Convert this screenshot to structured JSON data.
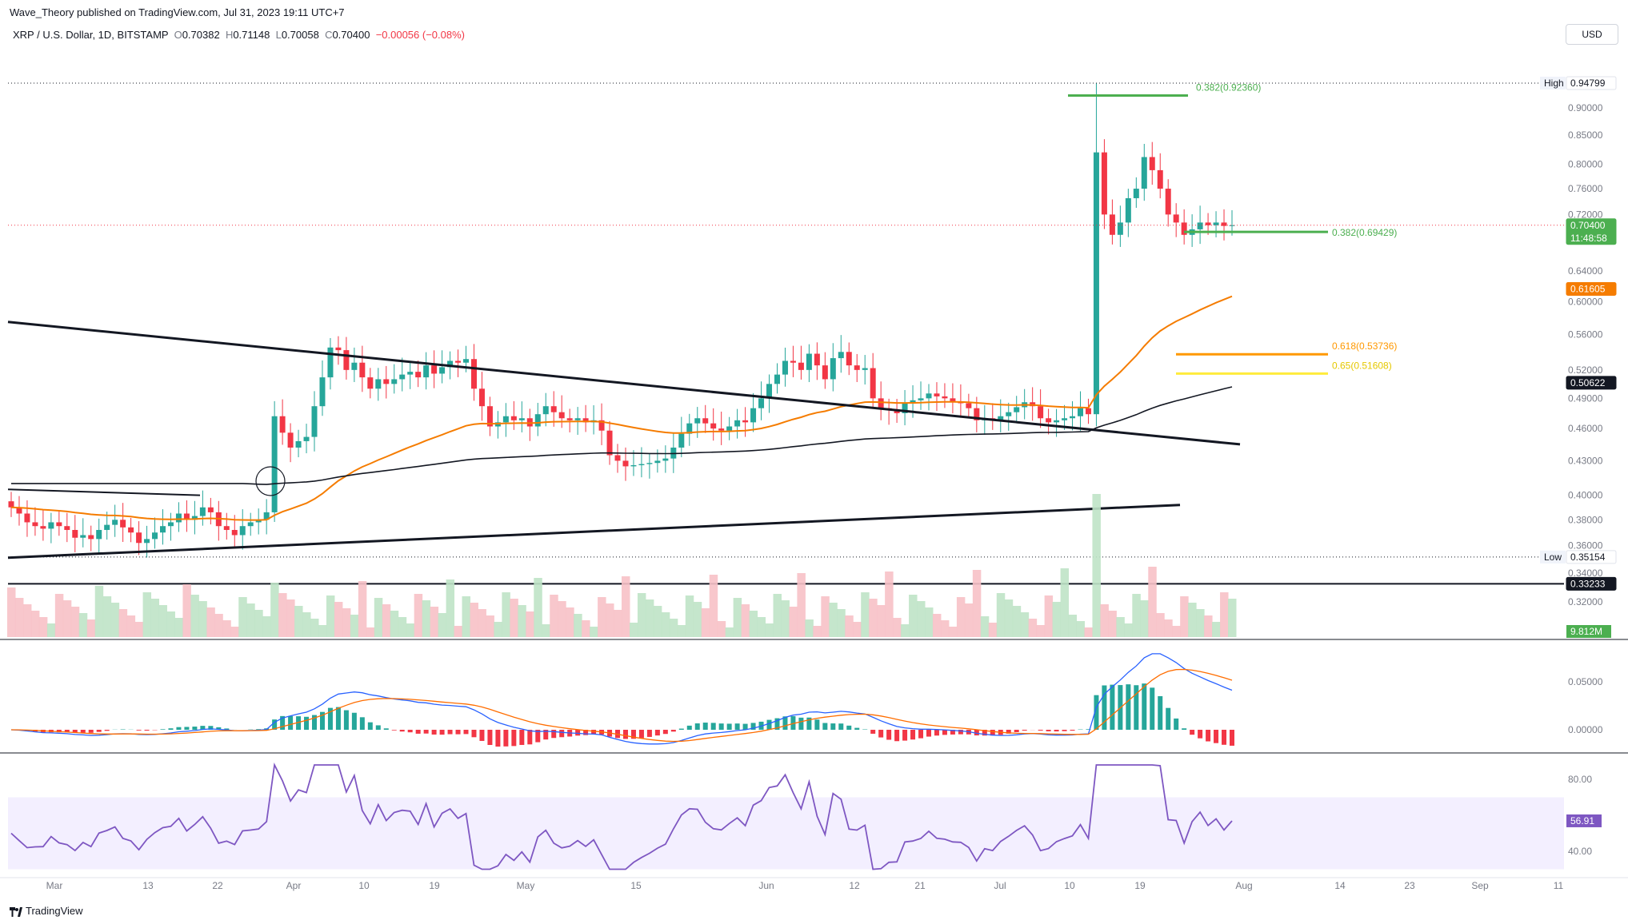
{
  "header": {
    "publisher": "Wave_Theory published on TradingView.com, Jul 31, 2023 19:11 UTC+7",
    "symbol": "XRP / U.S. Dollar, 1D, BITSTAMP",
    "open_label": "O",
    "open": "0.70382",
    "high_label": "H",
    "high": "0.71148",
    "low_label": "L",
    "low": "0.70058",
    "close_label": "C",
    "close": "0.70400",
    "change": "−0.00056 (−0.08%)",
    "currency_button": "USD"
  },
  "footer": {
    "brand": "TradingView"
  },
  "colors": {
    "up": "#26a69a",
    "down": "#f23645",
    "ema50": "#f57c00",
    "ema200": "#131722",
    "fib_green": "#4caf50",
    "fib_orange": "#ff9800",
    "fib_yellow": "#ffeb3b",
    "macd": "#2962ff",
    "signal": "#ff6d00",
    "rsi": "#7e57c2",
    "rsi_band": "#f3efff"
  },
  "chart_data": {
    "type": "line",
    "x_ticks": [
      "Mar",
      "13",
      "22",
      "Apr",
      "10",
      "19",
      "May",
      "15",
      "Jun",
      "12",
      "21",
      "Jul",
      "10",
      "19",
      "Aug",
      "14",
      "23",
      "Sep",
      "11"
    ],
    "price_axis": {
      "ticks": [
        "0.90000",
        "0.85000",
        "0.80000",
        "0.76000",
        "0.72000",
        "0.64000",
        "0.60000",
        "0.56000",
        "0.52000",
        "0.49000",
        "0.46000",
        "0.43000",
        "0.40000",
        "0.38000",
        "0.36000",
        "0.34000",
        "0.32000"
      ],
      "tick_values": [
        0.9,
        0.85,
        0.8,
        0.76,
        0.72,
        0.64,
        0.6,
        0.56,
        0.52,
        0.49,
        0.46,
        0.43,
        0.4,
        0.38,
        0.36,
        0.34,
        0.32
      ],
      "scale": "log"
    },
    "price_labels": [
      {
        "prefix": "High",
        "text": "0.94799",
        "value": 0.94799,
        "style": "high"
      },
      {
        "prefix": "",
        "text": "0.70400",
        "value": 0.704,
        "style": "last",
        "sub": "11:48:58"
      },
      {
        "prefix": "",
        "text": "0.61605",
        "value": 0.61605,
        "style": "ema50"
      },
      {
        "prefix": "",
        "text": "0.50622",
        "value": 0.50622,
        "style": "ema200"
      },
      {
        "prefix": "Low",
        "text": "0.35154",
        "value": 0.35154,
        "style": "low"
      },
      {
        "prefix": "",
        "text": "0.33233",
        "value": 0.33233,
        "style": "hline"
      }
    ],
    "fib_levels": [
      {
        "text": "0.382(0.92360)",
        "value": 0.9236,
        "color": "#4caf50"
      },
      {
        "text": "0.382(0.69429)",
        "value": 0.69429,
        "color": "#4caf50"
      },
      {
        "text": "0.618(0.53736)",
        "value": 0.53736,
        "color": "#ff9800"
      },
      {
        "text": "0.65(0.51608)",
        "value": 0.51608,
        "color": "#ffeb3b"
      }
    ],
    "candles_close": [
      0.39,
      0.385,
      0.378,
      0.375,
      0.373,
      0.378,
      0.375,
      0.372,
      0.366,
      0.368,
      0.365,
      0.372,
      0.376,
      0.38,
      0.374,
      0.37,
      0.362,
      0.365,
      0.37,
      0.375,
      0.378,
      0.385,
      0.38,
      0.383,
      0.39,
      0.386,
      0.375,
      0.372,
      0.368,
      0.375,
      0.378,
      0.38,
      0.386,
      0.472,
      0.456,
      0.442,
      0.448,
      0.452,
      0.482,
      0.512,
      0.545,
      0.542,
      0.52,
      0.528,
      0.512,
      0.5,
      0.51,
      0.505,
      0.51,
      0.515,
      0.518,
      0.512,
      0.525,
      0.516,
      0.523,
      0.53,
      0.528,
      0.532,
      0.5,
      0.482,
      0.462,
      0.466,
      0.472,
      0.468,
      0.47,
      0.462,
      0.474,
      0.482,
      0.476,
      0.47,
      0.468,
      0.47,
      0.466,
      0.468,
      0.458,
      0.435,
      0.43,
      0.425,
      0.426,
      0.427,
      0.428,
      0.43,
      0.432,
      0.442,
      0.455,
      0.465,
      0.47,
      0.465,
      0.46,
      0.458,
      0.462,
      0.468,
      0.466,
      0.48,
      0.49,
      0.505,
      0.515,
      0.53,
      0.528,
      0.52,
      0.538,
      0.525,
      0.51,
      0.533,
      0.54,
      0.525,
      0.52,
      0.522,
      0.49,
      0.48,
      0.478,
      0.475,
      0.485,
      0.488,
      0.49,
      0.495,
      0.492,
      0.49,
      0.487,
      0.485,
      0.48,
      0.468,
      0.47,
      0.468,
      0.472,
      0.476,
      0.481,
      0.486,
      0.482,
      0.47,
      0.466,
      0.468,
      0.47,
      0.472,
      0.48,
      0.474,
      0.82,
      0.72,
      0.69,
      0.708,
      0.745,
      0.76,
      0.812,
      0.79,
      0.76,
      0.72,
      0.708,
      0.69,
      0.698,
      0.708,
      0.704,
      0.708,
      0.703,
      0.704
    ],
    "candles_open": [
      0.395,
      0.39,
      0.385,
      0.378,
      0.375,
      0.373,
      0.378,
      0.375,
      0.372,
      0.366,
      0.368,
      0.365,
      0.372,
      0.376,
      0.38,
      0.374,
      0.37,
      0.362,
      0.365,
      0.37,
      0.375,
      0.378,
      0.385,
      0.38,
      0.383,
      0.39,
      0.386,
      0.375,
      0.372,
      0.368,
      0.375,
      0.378,
      0.38,
      0.386,
      0.472,
      0.456,
      0.442,
      0.448,
      0.452,
      0.482,
      0.512,
      0.545,
      0.542,
      0.52,
      0.528,
      0.512,
      0.5,
      0.51,
      0.505,
      0.51,
      0.515,
      0.518,
      0.512,
      0.525,
      0.516,
      0.523,
      0.53,
      0.528,
      0.532,
      0.5,
      0.482,
      0.462,
      0.466,
      0.472,
      0.468,
      0.47,
      0.462,
      0.474,
      0.482,
      0.476,
      0.47,
      0.468,
      0.47,
      0.466,
      0.468,
      0.458,
      0.435,
      0.43,
      0.425,
      0.426,
      0.427,
      0.428,
      0.43,
      0.432,
      0.442,
      0.455,
      0.465,
      0.47,
      0.465,
      0.46,
      0.458,
      0.462,
      0.468,
      0.466,
      0.48,
      0.49,
      0.505,
      0.515,
      0.53,
      0.528,
      0.52,
      0.538,
      0.525,
      0.51,
      0.533,
      0.54,
      0.525,
      0.52,
      0.522,
      0.49,
      0.48,
      0.478,
      0.475,
      0.485,
      0.488,
      0.49,
      0.495,
      0.492,
      0.49,
      0.487,
      0.485,
      0.48,
      0.468,
      0.47,
      0.468,
      0.472,
      0.476,
      0.481,
      0.486,
      0.482,
      0.47,
      0.466,
      0.468,
      0.47,
      0.472,
      0.48,
      0.474,
      0.82,
      0.72,
      0.69,
      0.708,
      0.745,
      0.76,
      0.812,
      0.79,
      0.76,
      0.72,
      0.708,
      0.69,
      0.698,
      0.708,
      0.704,
      0.708,
      0.703
    ],
    "volume_label": "9.812M",
    "macd_axis": {
      "ticks": [
        "0.05000",
        "0.00000"
      ],
      "tick_values": [
        0.05,
        0.0
      ]
    },
    "rsi": {
      "last_label": "56.91",
      "last_value": 56.91,
      "ticks": [
        "80.00",
        "40.00"
      ],
      "tick_values": [
        80,
        40
      ],
      "band": [
        30,
        70
      ]
    },
    "grid": false
  }
}
